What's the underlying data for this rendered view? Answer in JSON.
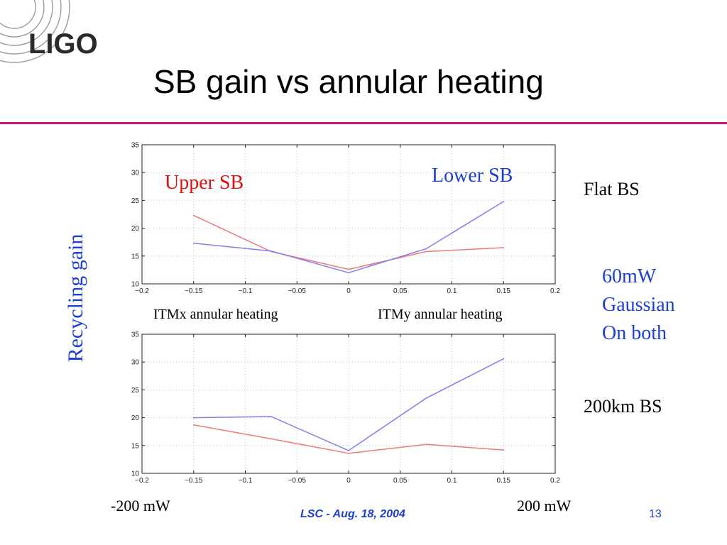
{
  "logo_text": "LIGO",
  "title": "SB gain vs annular heating",
  "colors": {
    "upper": "#f07878",
    "lower": "#8080f0",
    "rule": "#c8157f",
    "accent_blue": "#1d3fd1",
    "accent_red": "#e01010"
  },
  "y_axis_label": "Recycling gain",
  "labels": {
    "upper_sb": "Upper SB",
    "lower_sb": "Lower SB",
    "flat_bs": "Flat BS",
    "note": [
      "60mW",
      "Gaussian",
      "On both"
    ],
    "curved_bs": "200km BS",
    "itmx": "ITMx annular heating",
    "itmy": "ITMy annular heating",
    "left_power": "-200 mW",
    "right_power": "200 mW"
  },
  "footer": "LSC - Aug. 18, 2004",
  "page_number": "13",
  "chart_data": [
    {
      "type": "line",
      "title": "",
      "xlabel": "",
      "ylabel": "",
      "xlim": [
        -0.2,
        0.2
      ],
      "ylim": [
        10,
        35
      ],
      "x_ticks": [
        "−0.2",
        "−0.15",
        "−0.1",
        "−0.05",
        "0",
        "0.05",
        "0.1",
        "0.15",
        "0.2"
      ],
      "y_ticks": [
        "10",
        "15",
        "20",
        "25",
        "30",
        "35"
      ],
      "grid": true,
      "x": [
        -0.15,
        -0.075,
        0,
        0.075,
        0.15
      ],
      "series": [
        {
          "name": "Upper SB",
          "color": "#f07878",
          "values": [
            22.3,
            15.8,
            12.6,
            15.8,
            16.5
          ]
        },
        {
          "name": "Lower SB",
          "color": "#8080f0",
          "values": [
            17.3,
            15.9,
            12.0,
            16.3,
            24.8
          ]
        }
      ]
    },
    {
      "type": "line",
      "title": "",
      "xlabel": "",
      "ylabel": "",
      "xlim": [
        -0.2,
        0.2
      ],
      "ylim": [
        10,
        35
      ],
      "x_ticks": [
        "−0.2",
        "−0.15",
        "−0.1",
        "−0.05",
        "0",
        "0.05",
        "0.1",
        "0.15",
        "0.2"
      ],
      "y_ticks": [
        "10",
        "15",
        "20",
        "25",
        "30",
        "35"
      ],
      "grid": true,
      "x": [
        -0.15,
        -0.075,
        0,
        0.075,
        0.15
      ],
      "series": [
        {
          "name": "Upper SB",
          "color": "#f07878",
          "values": [
            18.7,
            16.2,
            13.6,
            15.2,
            14.2
          ]
        },
        {
          "name": "Lower SB",
          "color": "#8080f0",
          "values": [
            20.0,
            20.2,
            14.1,
            23.5,
            30.6
          ]
        }
      ]
    }
  ]
}
